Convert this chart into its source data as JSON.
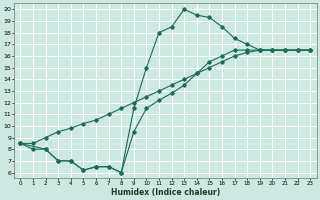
{
  "xlabel": "Humidex (Indice chaleur)",
  "background_color": "#cce8e0",
  "grid_color": "#ffffff",
  "line_color": "#1a6b5a",
  "xlim": [
    -0.5,
    23.5
  ],
  "ylim": [
    5.5,
    20.5
  ],
  "xticks": [
    0,
    1,
    2,
    3,
    4,
    5,
    6,
    7,
    8,
    9,
    10,
    11,
    12,
    13,
    14,
    15,
    16,
    17,
    18,
    19,
    20,
    21,
    22,
    23
  ],
  "yticks": [
    6,
    7,
    8,
    9,
    10,
    11,
    12,
    13,
    14,
    15,
    16,
    17,
    18,
    19,
    20
  ],
  "line1_x": [
    0,
    1,
    2,
    3,
    4,
    5,
    6,
    7,
    8,
    9,
    10,
    11,
    12,
    13,
    14,
    15,
    16,
    17,
    18,
    19,
    20,
    21,
    22,
    23
  ],
  "line1_y": [
    8.5,
    8.5,
    9.0,
    9.5,
    9.8,
    10.2,
    10.5,
    11.0,
    11.5,
    12.0,
    12.5,
    13.0,
    13.5,
    14.0,
    14.5,
    15.0,
    15.5,
    16.0,
    16.3,
    16.5,
    16.5,
    16.5,
    16.5,
    16.5
  ],
  "line2_x": [
    0,
    1,
    2,
    3,
    4,
    5,
    6,
    7,
    8,
    9,
    10,
    11,
    12,
    13,
    14,
    15,
    16,
    17,
    18,
    19,
    20,
    21,
    22,
    23
  ],
  "line2_y": [
    8.5,
    8.0,
    8.0,
    7.0,
    7.0,
    6.2,
    6.5,
    6.5,
    6.0,
    11.5,
    15.0,
    18.0,
    18.5,
    20.0,
    19.5,
    19.3,
    18.5,
    17.5,
    17.0,
    16.5,
    16.5,
    16.5,
    16.5,
    16.5
  ],
  "line3_x": [
    0,
    2,
    3,
    4,
    5,
    6,
    7,
    8,
    9,
    10,
    11,
    12,
    13,
    14,
    15,
    16,
    17,
    18,
    19,
    20,
    21,
    22,
    23
  ],
  "line3_y": [
    8.5,
    8.0,
    7.0,
    7.0,
    6.2,
    6.5,
    6.5,
    6.0,
    9.5,
    11.5,
    12.2,
    12.8,
    13.5,
    14.5,
    15.5,
    16.0,
    16.5,
    16.5,
    16.5,
    16.5,
    16.5,
    16.5,
    16.5
  ]
}
